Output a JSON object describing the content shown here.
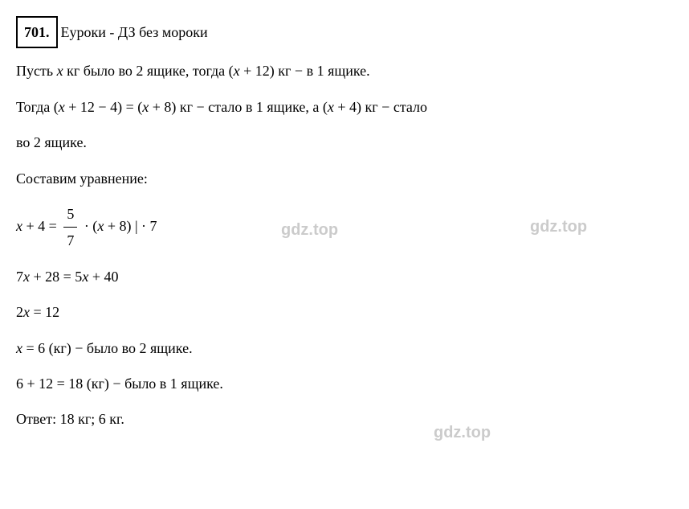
{
  "problem_number": "701.",
  "header_text": "Еуроки - ДЗ без мороки",
  "line1_p1": "Пусть ",
  "line1_var1": "x",
  "line1_p2": " кг было во 2 ящике, тогда (",
  "line1_var2": "x",
  "line1_p3": " + 12) кг − в 1 ящике.",
  "line2_p1": "Тогда (",
  "line2_var1": "x",
  "line2_p2": " + 12 − 4) = (",
  "line2_var2": "x",
  "line2_p3": " + 8) кг − стало в 1 ящике, а (",
  "line2_var3": "x",
  "line2_p4": " + 4) кг − стало",
  "line3": "во 2 ящике.",
  "line4": "Составим уравнение:",
  "eq1_var1": "x",
  "eq1_p1": " + 4 = ",
  "eq1_num": "5",
  "eq1_den": "7",
  "eq1_p2": " · (",
  "eq1_var2": "x",
  "eq1_p3": " + 8)   | · 7",
  "eq2_p1": "7",
  "eq2_var1": "x",
  "eq2_p2": " + 28 = 5",
  "eq2_var2": "x",
  "eq2_p3": " + 40",
  "eq3_p1": "2",
  "eq3_var1": "x",
  "eq3_p2": " = 12",
  "eq4_var1": "x",
  "eq4_p1": " = 6 (кг) − было во 2 ящике.",
  "eq5": "6 + 12 = 18 (кг) − было в 1 ящике.",
  "answer": "Ответ: 18 кг; 6 кг.",
  "watermark": "gdz.top"
}
